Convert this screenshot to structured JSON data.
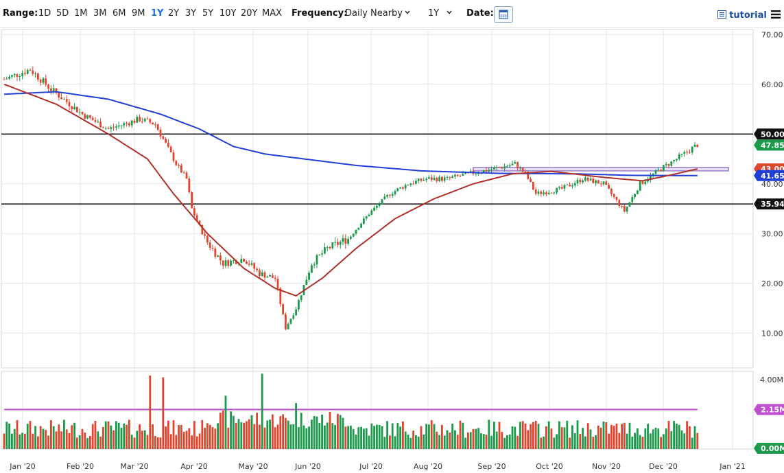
{
  "toolbar": {
    "range_label": "Range:",
    "ranges": [
      "1D",
      "5D",
      "1M",
      "3M",
      "6M",
      "9M",
      "1Y",
      "2Y",
      "3Y",
      "5Y",
      "10Y",
      "20Y",
      "MAX"
    ],
    "active_range": "1Y",
    "frequency_label": "Frequency:",
    "frequency_value": "Daily Nearby",
    "period_value": "1Y",
    "date_label": "Date:",
    "tutorial_label": "tutorial"
  },
  "colors": {
    "up": "#1a9a4a",
    "down": "#e0452e",
    "sma_fast": "#b0302a",
    "sma_slow": "#1f3fd6",
    "volume_avg": "#c04fd0",
    "zone_fill": "#e8e0f5",
    "zone_stroke": "#9a7fc8"
  },
  "chart_data": {
    "type": "candlestick",
    "x_ticks": [
      "Jan '20",
      "Feb '20",
      "Mar '20",
      "Apr '20",
      "May '20",
      "Jun '20",
      "Jul '20",
      "Aug '20",
      "Sep '20",
      "Oct '20",
      "Nov '20",
      "Dec '20",
      "Jan '21"
    ],
    "y_ticks": [
      "70.00",
      "60.00",
      "40.00",
      "30.00",
      "20.00",
      "10.00"
    ],
    "ylim": [
      3,
      71
    ],
    "volume_ticks": [
      "4.00M",
      "0.00M"
    ],
    "volume_ylim": [
      0,
      4.0
    ],
    "horizontal_lines": [
      {
        "value": 50.0,
        "label": "50.00"
      },
      {
        "value": 35.94,
        "label": "35.94"
      }
    ],
    "zone": {
      "from": 42.6,
      "to": 43.3,
      "start": "Aug '20",
      "end": "Jan '21"
    },
    "price_labels": [
      {
        "label": "50.00",
        "value": 50.0,
        "kind": "line"
      },
      {
        "label": "47.85",
        "value": 47.85,
        "kind": "last"
      },
      {
        "label": "43.00",
        "value": 43.0,
        "kind": "sma_fast"
      },
      {
        "label": "41.65",
        "value": 41.65,
        "kind": "sma_slow"
      },
      {
        "label": "35.94",
        "value": 35.94,
        "kind": "line"
      }
    ],
    "volume_labels": [
      {
        "label": "2.15M",
        "value": 2.15,
        "kind": "avg"
      },
      {
        "label": "0.00M",
        "value": 0.0,
        "kind": "last"
      }
    ],
    "close_anchors": [
      [
        0,
        61
      ],
      [
        10,
        63
      ],
      [
        18,
        59
      ],
      [
        30,
        54
      ],
      [
        40,
        51
      ],
      [
        52,
        53
      ],
      [
        58,
        52
      ],
      [
        66,
        44
      ],
      [
        70,
        41
      ],
      [
        72,
        35
      ],
      [
        77,
        29
      ],
      [
        84,
        24
      ],
      [
        92,
        25
      ],
      [
        98,
        22
      ],
      [
        104,
        21
      ],
      [
        108,
        11
      ],
      [
        112,
        15
      ],
      [
        118,
        24
      ],
      [
        124,
        27
      ],
      [
        132,
        29
      ],
      [
        140,
        34
      ],
      [
        148,
        38
      ],
      [
        155,
        40
      ],
      [
        162,
        41
      ],
      [
        170,
        41
      ],
      [
        178,
        42
      ],
      [
        188,
        43
      ],
      [
        196,
        44
      ],
      [
        200,
        42
      ],
      [
        204,
        38
      ],
      [
        214,
        39
      ],
      [
        222,
        41
      ],
      [
        230,
        40
      ],
      [
        238,
        34.5
      ],
      [
        244,
        40
      ],
      [
        252,
        43
      ],
      [
        258,
        45
      ],
      [
        266,
        47.85
      ]
    ],
    "sma_fast_anchors": [
      [
        0,
        60
      ],
      [
        20,
        56
      ],
      [
        40,
        50
      ],
      [
        55,
        45
      ],
      [
        65,
        38
      ],
      [
        78,
        30
      ],
      [
        92,
        23
      ],
      [
        104,
        19
      ],
      [
        112,
        17.5
      ],
      [
        122,
        21
      ],
      [
        135,
        27
      ],
      [
        150,
        33
      ],
      [
        165,
        37
      ],
      [
        180,
        40
      ],
      [
        195,
        42
      ],
      [
        210,
        42.5
      ],
      [
        230,
        41.3
      ],
      [
        245,
        40.6
      ],
      [
        256,
        41.8
      ],
      [
        266,
        43
      ]
    ],
    "sma_slow_anchors": [
      [
        0,
        58
      ],
      [
        20,
        58.5
      ],
      [
        40,
        57
      ],
      [
        60,
        54
      ],
      [
        75,
        51
      ],
      [
        88,
        47.5
      ],
      [
        100,
        46
      ],
      [
        115,
        45
      ],
      [
        135,
        43.7
      ],
      [
        160,
        42.6
      ],
      [
        190,
        42.1
      ],
      [
        220,
        42.0
      ],
      [
        240,
        41.7
      ],
      [
        266,
        41.65
      ]
    ],
    "volume_avg": 2.15,
    "volume_spikes": [
      [
        56,
        4.0
      ],
      [
        61,
        3.9
      ],
      [
        99,
        4.1
      ],
      [
        85,
        2.9
      ],
      [
        112,
        2.5
      ]
    ]
  }
}
